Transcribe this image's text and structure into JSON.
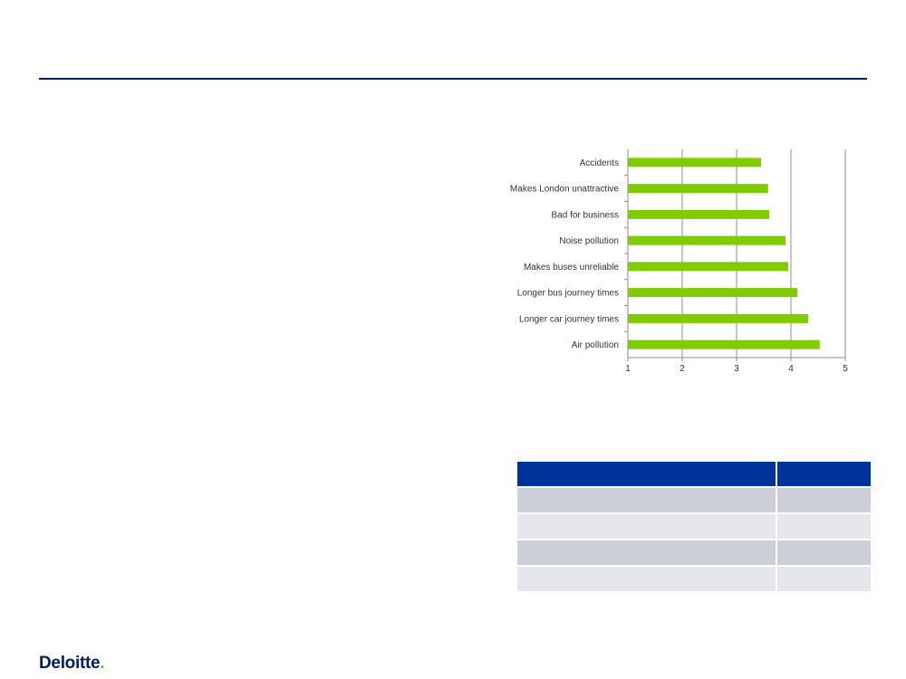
{
  "brand": {
    "name": "Deloitte",
    "dot": ".",
    "colors": {
      "navy": "#00205b",
      "green": "#86bc25",
      "table_header": "#00339a"
    }
  },
  "chart_data": {
    "type": "bar",
    "orientation": "horizontal",
    "categories": [
      "Accidents",
      "Makes London unattractive",
      "Bad for business",
      "Noise pollution",
      "Makes buses unreliable",
      "Longer bus journey times",
      "Longer car journey times",
      "Air pollution"
    ],
    "values": [
      3.45,
      3.58,
      3.6,
      3.9,
      3.95,
      4.12,
      4.32,
      4.53
    ],
    "xticks": [
      "1",
      "2",
      "3",
      "4",
      "5"
    ],
    "xlim": [
      1,
      5
    ],
    "grid": true,
    "bar_color": "#7fcc00",
    "title": "",
    "xlabel": "",
    "ylabel": ""
  },
  "table": {
    "rows": 5,
    "cols": 2
  }
}
